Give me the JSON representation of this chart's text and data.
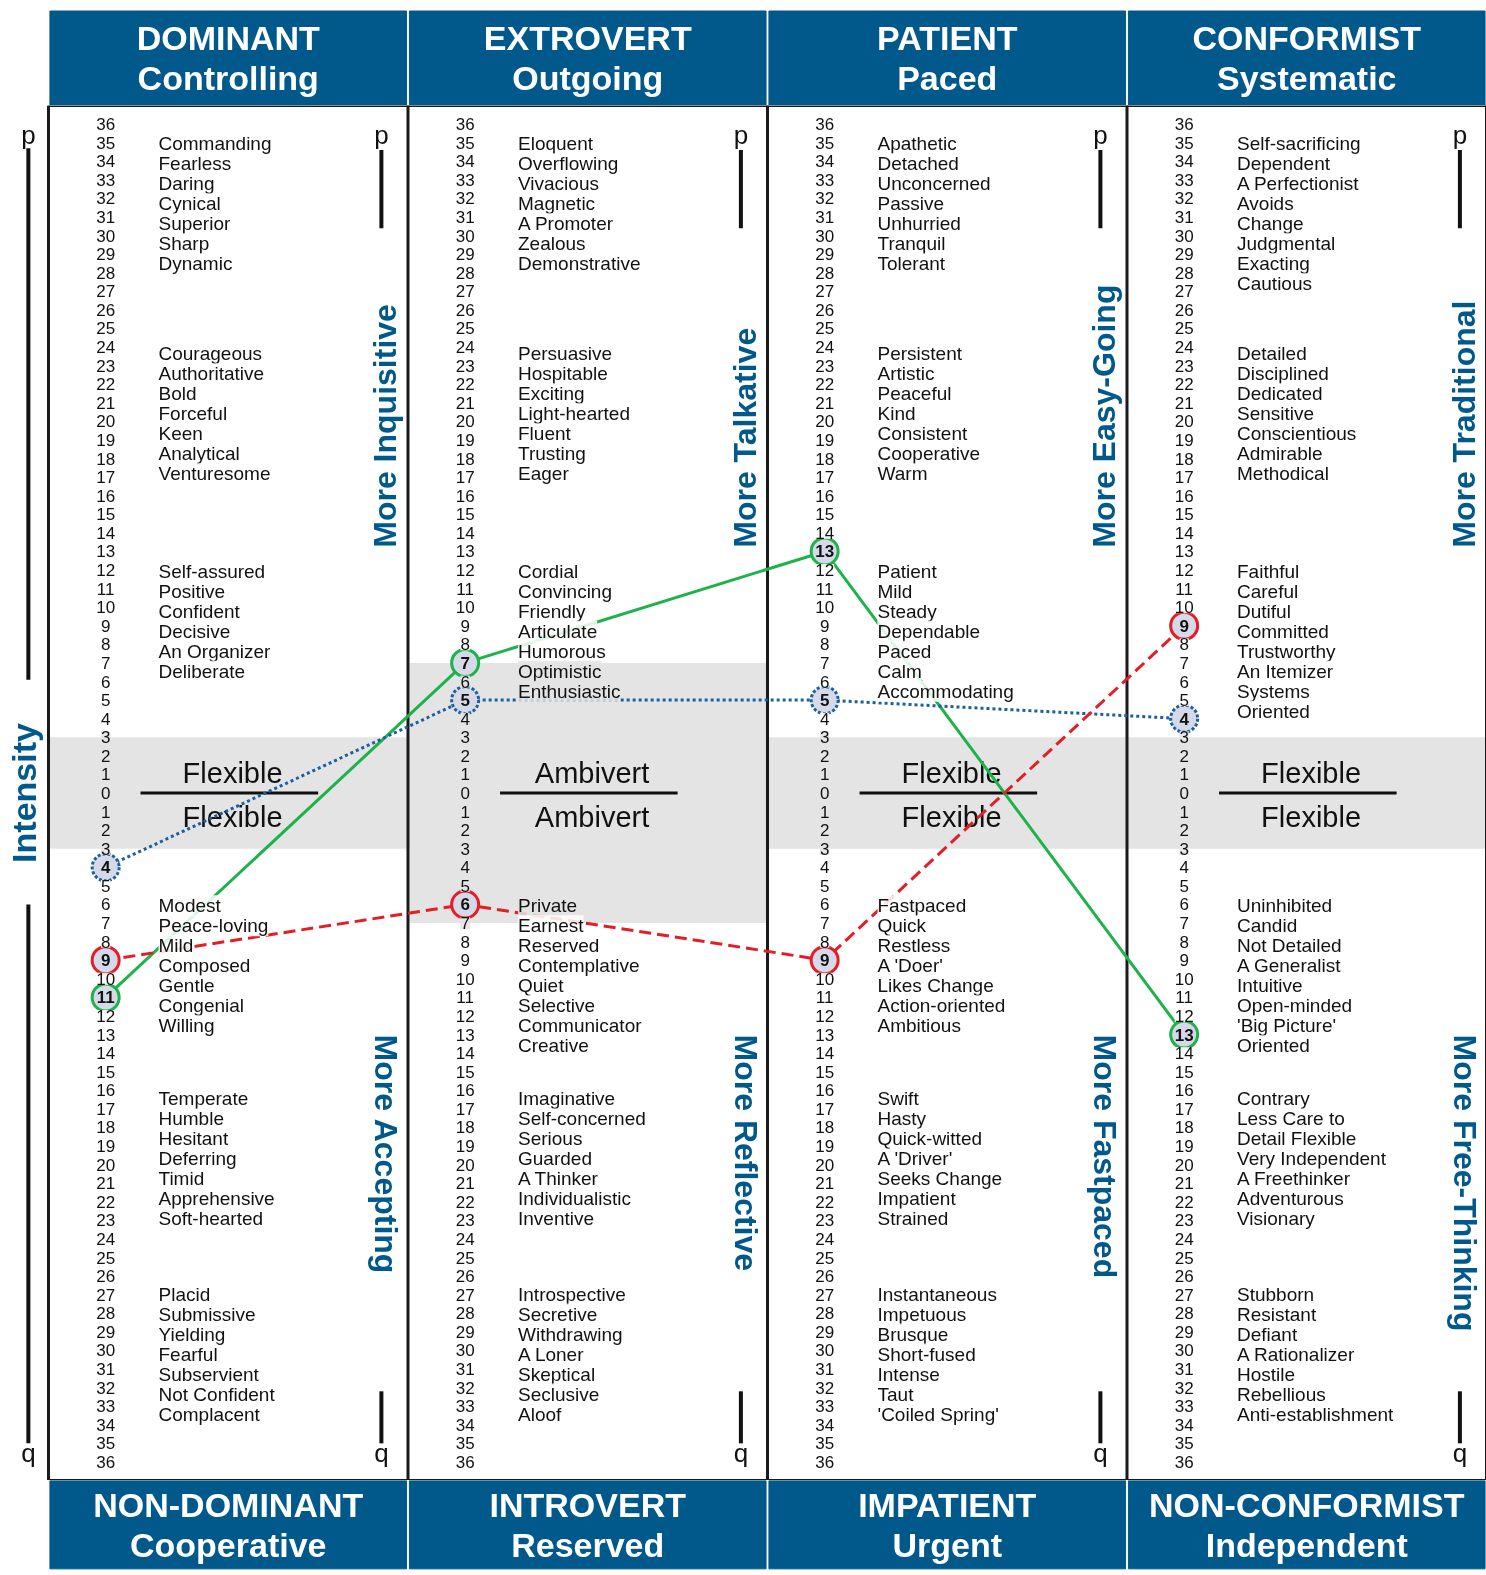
{
  "chart_data": {
    "type": "line",
    "categories": [
      "DOMINANT\nControlling",
      "EXTROVERT\nOutgoing",
      "PATIENT\nPaced",
      "CONFORMIST\nSystematic"
    ],
    "ylabel": "Intensity",
    "marker": "circle",
    "ylim": [
      -37,
      37
    ],
    "yticks": [
      {
        "value": 36,
        "label": "36"
      },
      {
        "value": 35,
        "label": "35"
      },
      {
        "value": 34,
        "label": "34"
      },
      {
        "value": 33,
        "label": "33"
      },
      {
        "value": 32,
        "label": "32"
      },
      {
        "value": 31,
        "label": "31"
      },
      {
        "value": 30,
        "label": "30"
      },
      {
        "value": 29,
        "label": "29"
      },
      {
        "value": 28,
        "label": "28"
      },
      {
        "value": 27,
        "label": "27"
      },
      {
        "value": 26,
        "label": "26"
      },
      {
        "value": 25,
        "label": "25"
      },
      {
        "value": 24,
        "label": "24"
      },
      {
        "value": 23,
        "label": "23"
      },
      {
        "value": 22,
        "label": "22"
      },
      {
        "value": 21,
        "label": "21"
      },
      {
        "value": 20,
        "label": "20"
      },
      {
        "value": 19,
        "label": "19"
      },
      {
        "value": 18,
        "label": "18"
      },
      {
        "value": 17,
        "label": "17"
      },
      {
        "value": 16,
        "label": "16"
      },
      {
        "value": 15,
        "label": "15"
      },
      {
        "value": 14,
        "label": "14"
      },
      {
        "value": 13,
        "label": "13"
      },
      {
        "value": 12,
        "label": "12"
      },
      {
        "value": 11,
        "label": "11"
      },
      {
        "value": 10,
        "label": "10"
      },
      {
        "value": 9,
        "label": "9"
      },
      {
        "value": 8,
        "label": "8"
      },
      {
        "value": 7,
        "label": "7"
      },
      {
        "value": 6,
        "label": "6"
      },
      {
        "value": 5,
        "label": "5"
      },
      {
        "value": 4,
        "label": "4"
      },
      {
        "value": 3,
        "label": "3"
      },
      {
        "value": 2,
        "label": "2"
      },
      {
        "value": 1,
        "label": "1"
      },
      {
        "value": 0,
        "label": "0"
      },
      {
        "value": -1,
        "label": "1"
      },
      {
        "value": -2,
        "label": "2"
      },
      {
        "value": -3,
        "label": "3"
      },
      {
        "value": -4,
        "label": "4"
      },
      {
        "value": -5,
        "label": "5"
      },
      {
        "value": -6,
        "label": "6"
      },
      {
        "value": -7,
        "label": "7"
      },
      {
        "value": -8,
        "label": "8"
      },
      {
        "value": -9,
        "label": "9"
      },
      {
        "value": -10,
        "label": "10"
      },
      {
        "value": -11,
        "label": "11"
      },
      {
        "value": -12,
        "label": "12"
      },
      {
        "value": -13,
        "label": "13"
      },
      {
        "value": -14,
        "label": "14"
      },
      {
        "value": -15,
        "label": "15"
      },
      {
        "value": -16,
        "label": "16"
      },
      {
        "value": -17,
        "label": "17"
      },
      {
        "value": -18,
        "label": "18"
      },
      {
        "value": -19,
        "label": "19"
      },
      {
        "value": -20,
        "label": "20"
      },
      {
        "value": -21,
        "label": "21"
      },
      {
        "value": -22,
        "label": "22"
      },
      {
        "value": -23,
        "label": "23"
      },
      {
        "value": -24,
        "label": "24"
      },
      {
        "value": -25,
        "label": "25"
      },
      {
        "value": -26,
        "label": "26"
      },
      {
        "value": -27,
        "label": "27"
      },
      {
        "value": -28,
        "label": "28"
      },
      {
        "value": -29,
        "label": "29"
      },
      {
        "value": -30,
        "label": "30"
      },
      {
        "value": -31,
        "label": "31"
      },
      {
        "value": -32,
        "label": "32"
      },
      {
        "value": -33,
        "label": "33"
      },
      {
        "value": -34,
        "label": "34"
      },
      {
        "value": -35,
        "label": "35"
      },
      {
        "value": -36,
        "label": "36"
      }
    ],
    "bands": [
      {
        "axis": "y",
        "from": -3,
        "to": 3,
        "color": "#e4e4e4"
      },
      {
        "axis": "y",
        "from": -7,
        "to": 7,
        "color": "#e4e4e4"
      }
    ],
    "series": [
      {
        "color": "#1db34a",
        "line_style": "solid",
        "values": [
          -11,
          7,
          13,
          -13
        ]
      },
      {
        "color": "#1a5f9f",
        "line_style": "dotted",
        "values": [
          -4,
          5,
          5,
          4
        ]
      },
      {
        "color": "#e31e26",
        "line_style": "dashed",
        "values": [
          -9,
          -6,
          -9,
          9
        ]
      }
    ],
    "annotations": [
      "NON-DOMINANT\nCooperative",
      "INTROVERT\nReserved",
      "IMPATIENT\nUrgent",
      "NON-CONFORMIST\nIndependent",
      "More Inquisitive",
      "More Accepting",
      "Flexible",
      "Flexible",
      "More Talkative",
      "More Reflective",
      "Ambivert",
      "Ambivert",
      "More Easy-Going",
      "More Fastpaced",
      "Flexible",
      "Flexible",
      "More Traditional",
      "More Free-Thinking",
      "Flexible",
      "Flexible",
      "p",
      "q",
      "p",
      "q",
      "p",
      "q",
      "p",
      "q",
      "p",
      "q",
      "Commanding\nFearless\nDaring\nCynical\nSuperior\nSharp\nDynamic",
      "Courageous\nAuthoritative\nBold\nForceful\nKeen\nAnalytical\nVenturesome",
      "Self-assured\nPositive\nConfident\nDecisive\nAn Organizer\nDeliberate",
      "Modest\nPeace-loving\nMild\nComposed\nGentle\nCongenial\nWilling",
      "Temperate\nHumble\nHesitant\nDeferring\nTimid\nApprehensive\nSoft-hearted",
      "Placid\nSubmissive\nYielding\nFearful\nSubservient\nNot Confident\nComplacent",
      "Eloquent\nOverflowing\nVivacious\nMagnetic\nA Promoter\nZealous\nDemonstrative",
      "Persuasive\nHospitable\nExciting\nLight-hearted\nFluent\nTrusting\nEager",
      "Cordial\nConvincing\nFriendly\nArticulate\nHumorous\nOptimistic\nEnthusiastic",
      "Private\nEarnest\nReserved\nContemplative\nQuiet\nSelective\nCommunicator\nCreative",
      "Imaginative\nSelf-concerned\nSerious\nGuarded\nA Thinker\nIndividualistic\nInventive",
      "Introspective\nSecretive\nWithdrawing\nA Loner\nSkeptical\nSeclusive\nAloof",
      "Apathetic\nDetached\nUnconcerned\nPassive\nUnhurried\nTranquil\nTolerant",
      "Persistent\nArtistic\nPeaceful\nKind\nConsistent\nCooperative\nWarm",
      "Patient\nMild\nSteady\nDependable\nPaced\nCalm\nAccommodating",
      "Fastpaced\nQuick\nRestless\nA 'Doer'\nLikes Change\nAction-oriented\nAmbitious",
      "Swift\nHasty\nQuick-witted\nA 'Driver'\nSeeks Change\nImpatient\nStrained",
      "Instantaneous\nImpetuous\nBrusque\nShort-fused\nIntense\nTaut\n'Coiled Spring'",
      "Self-sacrificing\nDependent\nA Perfectionist\nAvoids\nChange\nJudgmental\nExacting\nCautious",
      "Detailed\nDisciplined\nDedicated\nSensitive\nConscientious\nAdmirable\nMethodical",
      "Faithful\nCareful\nDutiful\nCommitted\nTrustworthy\nAn Itemizer\nSystems\nOriented",
      "Uninhibited\nCandid\nNot Detailed\nA Generalist\nIntuitive\nOpen-minded\n'Big Picture'\nOriented",
      "Contrary\nLess Care to\nDetail Flexible\nVery Independent\nA Freethinker\nAdventurous\nVisionary",
      "Stubborn\nResistant\nDefiant\nA Rationalizer\nHostile\nRebellious\nAnti-establishment"
    ]
  }
}
